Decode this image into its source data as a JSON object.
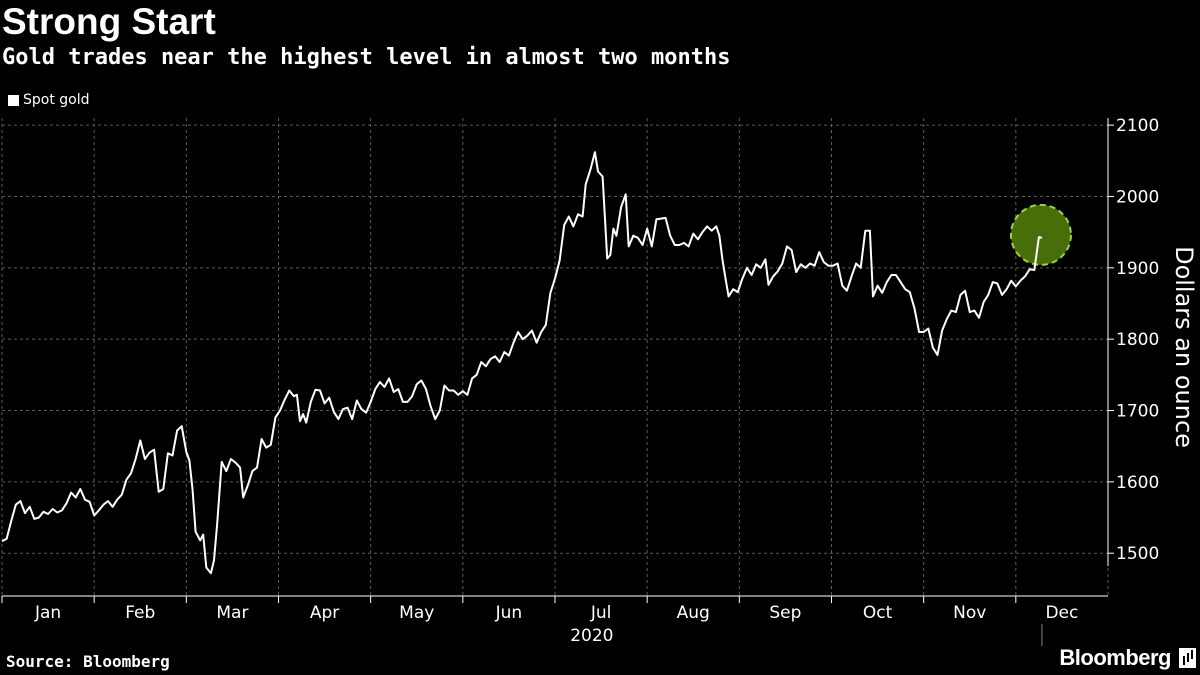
{
  "header": {
    "title": "Strong Start",
    "subtitle": "Gold trades near the highest level in almost two months"
  },
  "legend": {
    "items": [
      {
        "label": "Spot gold",
        "color": "#ffffff"
      }
    ]
  },
  "footer": {
    "source": "Source: Bloomberg",
    "brand": "Bloomberg"
  },
  "colors": {
    "background": "#000000",
    "line": "#ffffff",
    "grid": "#5a5a5a",
    "highlight_fill": "#4f7a0a",
    "highlight_stroke": "#9ed14a"
  },
  "chart_data": {
    "type": "line",
    "title": "Strong Start",
    "subtitle": "Gold trades near the highest level in almost two months",
    "xlabel": "2020",
    "ylabel": "Dollars an ounce",
    "ylim": [
      1440,
      2110
    ],
    "yticks": [
      1500,
      1600,
      1700,
      1800,
      1900,
      2000,
      2100
    ],
    "y_axis_position": "right",
    "grid": true,
    "legend_position": "top-left",
    "x_categories": [
      "Jan",
      "Feb",
      "Mar",
      "Apr",
      "May",
      "Jun",
      "Jul",
      "Aug",
      "Sep",
      "Oct",
      "Nov",
      "Dec"
    ],
    "year_label": "2020",
    "annotation": {
      "type": "circle-highlight",
      "target": "last point"
    },
    "series": [
      {
        "name": "Spot gold",
        "points": [
          [
            0.0,
            1517
          ],
          [
            0.15,
            1520
          ],
          [
            0.3,
            1545
          ],
          [
            0.45,
            1568
          ],
          [
            0.6,
            1573
          ],
          [
            0.75,
            1556
          ],
          [
            0.9,
            1565
          ],
          [
            1.05,
            1548
          ],
          [
            1.2,
            1550
          ],
          [
            1.35,
            1558
          ],
          [
            1.5,
            1555
          ],
          [
            1.65,
            1562
          ],
          [
            1.8,
            1557
          ],
          [
            1.95,
            1560
          ],
          [
            2.1,
            1570
          ],
          [
            2.25,
            1585
          ],
          [
            2.4,
            1578
          ],
          [
            2.55,
            1590
          ],
          [
            2.7,
            1575
          ],
          [
            2.85,
            1572
          ],
          [
            3.0,
            1553
          ],
          [
            3.15,
            1560
          ],
          [
            3.3,
            1568
          ],
          [
            3.45,
            1573
          ],
          [
            3.6,
            1565
          ],
          [
            3.75,
            1575
          ],
          [
            3.9,
            1582
          ],
          [
            4.05,
            1603
          ],
          [
            4.2,
            1612
          ],
          [
            4.35,
            1632
          ],
          [
            4.5,
            1658
          ],
          [
            4.65,
            1632
          ],
          [
            4.8,
            1641
          ],
          [
            4.95,
            1645
          ],
          [
            5.1,
            1586
          ],
          [
            5.25,
            1590
          ],
          [
            5.4,
            1640
          ],
          [
            5.55,
            1637
          ],
          [
            5.7,
            1672
          ],
          [
            5.85,
            1678
          ],
          [
            6.0,
            1642
          ],
          [
            6.1,
            1630
          ],
          [
            6.2,
            1590
          ],
          [
            6.3,
            1530
          ],
          [
            6.45,
            1518
          ],
          [
            6.55,
            1526
          ],
          [
            6.65,
            1480
          ],
          [
            6.8,
            1472
          ],
          [
            6.9,
            1490
          ],
          [
            7.0,
            1540
          ],
          [
            7.15,
            1628
          ],
          [
            7.3,
            1615
          ],
          [
            7.45,
            1632
          ],
          [
            7.6,
            1627
          ],
          [
            7.75,
            1620
          ],
          [
            7.85,
            1578
          ],
          [
            8.0,
            1595
          ],
          [
            8.15,
            1615
          ],
          [
            8.3,
            1620
          ],
          [
            8.45,
            1660
          ],
          [
            8.6,
            1648
          ],
          [
            8.75,
            1652
          ],
          [
            8.9,
            1690
          ],
          [
            9.05,
            1700
          ],
          [
            9.2,
            1715
          ],
          [
            9.35,
            1728
          ],
          [
            9.5,
            1720
          ],
          [
            9.6,
            1722
          ],
          [
            9.7,
            1685
          ],
          [
            9.8,
            1695
          ],
          [
            9.9,
            1683
          ],
          [
            10.05,
            1712
          ],
          [
            10.2,
            1729
          ],
          [
            10.35,
            1728
          ],
          [
            10.5,
            1710
          ],
          [
            10.65,
            1718
          ],
          [
            10.8,
            1698
          ],
          [
            10.95,
            1688
          ],
          [
            11.1,
            1702
          ],
          [
            11.25,
            1704
          ],
          [
            11.4,
            1688
          ],
          [
            11.55,
            1714
          ],
          [
            11.7,
            1702
          ],
          [
            11.85,
            1697
          ],
          [
            12.0,
            1712
          ],
          [
            12.15,
            1730
          ],
          [
            12.3,
            1740
          ],
          [
            12.45,
            1733
          ],
          [
            12.6,
            1745
          ],
          [
            12.75,
            1726
          ],
          [
            12.9,
            1730
          ],
          [
            13.05,
            1712
          ],
          [
            13.2,
            1712
          ],
          [
            13.35,
            1720
          ],
          [
            13.5,
            1737
          ],
          [
            13.65,
            1742
          ],
          [
            13.8,
            1730
          ],
          [
            13.95,
            1706
          ],
          [
            14.1,
            1688
          ],
          [
            14.25,
            1700
          ],
          [
            14.4,
            1735
          ],
          [
            14.55,
            1728
          ],
          [
            14.7,
            1728
          ],
          [
            14.85,
            1722
          ],
          [
            15.0,
            1727
          ],
          [
            15.15,
            1722
          ],
          [
            15.3,
            1745
          ],
          [
            15.45,
            1750
          ],
          [
            15.6,
            1768
          ],
          [
            15.75,
            1762
          ],
          [
            15.9,
            1772
          ],
          [
            16.05,
            1776
          ],
          [
            16.2,
            1768
          ],
          [
            16.35,
            1782
          ],
          [
            16.5,
            1777
          ],
          [
            16.65,
            1795
          ],
          [
            16.8,
            1810
          ],
          [
            16.95,
            1800
          ],
          [
            17.1,
            1805
          ],
          [
            17.25,
            1812
          ],
          [
            17.4,
            1795
          ],
          [
            17.55,
            1810
          ],
          [
            17.7,
            1820
          ],
          [
            17.85,
            1865
          ],
          [
            18.0,
            1885
          ],
          [
            18.15,
            1910
          ],
          [
            18.3,
            1960
          ],
          [
            18.45,
            1972
          ],
          [
            18.6,
            1958
          ],
          [
            18.75,
            1975
          ],
          [
            18.9,
            1972
          ],
          [
            19.0,
            2017
          ],
          [
            19.15,
            2037
          ],
          [
            19.3,
            2062
          ],
          [
            19.4,
            2035
          ],
          [
            19.55,
            2028
          ],
          [
            19.7,
            1913
          ],
          [
            19.8,
            1918
          ],
          [
            19.9,
            1955
          ],
          [
            20.0,
            1945
          ],
          [
            20.15,
            1985
          ],
          [
            20.3,
            2003
          ],
          [
            20.4,
            1930
          ],
          [
            20.55,
            1945
          ],
          [
            20.7,
            1942
          ],
          [
            20.85,
            1932
          ],
          [
            21.0,
            1955
          ],
          [
            21.15,
            1930
          ],
          [
            21.3,
            1968
          ],
          [
            21.45,
            1969
          ],
          [
            21.6,
            1970
          ],
          [
            21.75,
            1945
          ],
          [
            21.9,
            1932
          ],
          [
            22.05,
            1932
          ],
          [
            22.2,
            1935
          ],
          [
            22.35,
            1930
          ],
          [
            22.5,
            1948
          ],
          [
            22.65,
            1940
          ],
          [
            22.8,
            1950
          ],
          [
            22.95,
            1958
          ],
          [
            23.1,
            1952
          ],
          [
            23.25,
            1958
          ],
          [
            23.35,
            1945
          ],
          [
            23.45,
            1912
          ],
          [
            23.55,
            1885
          ],
          [
            23.65,
            1860
          ],
          [
            23.8,
            1870
          ],
          [
            23.95,
            1866
          ],
          [
            24.1,
            1885
          ],
          [
            24.25,
            1900
          ],
          [
            24.4,
            1890
          ],
          [
            24.55,
            1905
          ],
          [
            24.7,
            1900
          ],
          [
            24.85,
            1912
          ],
          [
            24.95,
            1876
          ],
          [
            25.1,
            1888
          ],
          [
            25.25,
            1895
          ],
          [
            25.4,
            1906
          ],
          [
            25.55,
            1930
          ],
          [
            25.7,
            1925
          ],
          [
            25.85,
            1894
          ],
          [
            26.0,
            1905
          ],
          [
            26.15,
            1900
          ],
          [
            26.3,
            1906
          ],
          [
            26.45,
            1903
          ],
          [
            26.6,
            1922
          ],
          [
            26.75,
            1908
          ],
          [
            26.9,
            1903
          ],
          [
            27.05,
            1903
          ],
          [
            27.2,
            1906
          ],
          [
            27.35,
            1875
          ],
          [
            27.5,
            1868
          ],
          [
            27.65,
            1888
          ],
          [
            27.8,
            1906
          ],
          [
            27.95,
            1900
          ],
          [
            28.1,
            1952
          ],
          [
            28.25,
            1952
          ],
          [
            28.35,
            1860
          ],
          [
            28.5,
            1875
          ],
          [
            28.65,
            1865
          ],
          [
            28.8,
            1880
          ],
          [
            28.95,
            1890
          ],
          [
            29.1,
            1890
          ],
          [
            29.25,
            1880
          ],
          [
            29.4,
            1870
          ],
          [
            29.55,
            1866
          ],
          [
            29.7,
            1843
          ],
          [
            29.85,
            1810
          ],
          [
            30.0,
            1810
          ],
          [
            30.15,
            1815
          ],
          [
            30.3,
            1788
          ],
          [
            30.45,
            1778
          ],
          [
            30.6,
            1812
          ],
          [
            30.75,
            1828
          ],
          [
            30.9,
            1840
          ],
          [
            31.05,
            1838
          ],
          [
            31.2,
            1862
          ],
          [
            31.35,
            1868
          ],
          [
            31.5,
            1838
          ],
          [
            31.65,
            1840
          ],
          [
            31.8,
            1830
          ],
          [
            31.95,
            1852
          ],
          [
            32.1,
            1862
          ],
          [
            32.25,
            1880
          ],
          [
            32.4,
            1878
          ],
          [
            32.55,
            1862
          ],
          [
            32.7,
            1870
          ],
          [
            32.85,
            1882
          ],
          [
            33.0,
            1874
          ],
          [
            33.15,
            1882
          ],
          [
            33.3,
            1888
          ],
          [
            33.45,
            1898
          ],
          [
            33.6,
            1897
          ],
          [
            33.75,
            1943
          ],
          [
            33.85,
            1942
          ]
        ]
      }
    ]
  }
}
